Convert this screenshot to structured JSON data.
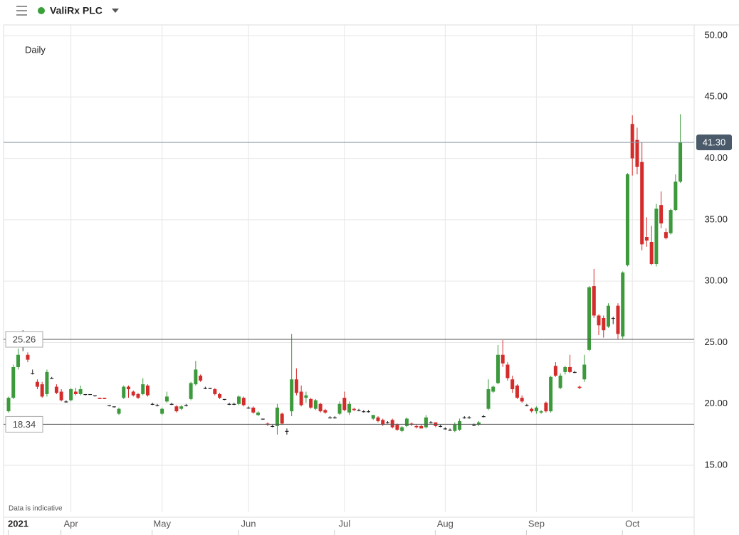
{
  "header": {
    "title": "ValiRx PLC"
  },
  "chart_data": {
    "type": "candlestick",
    "interval_label": "Daily",
    "footnote": "Data is indicative",
    "categories": [
      null,
      null,
      "2021",
      null,
      null,
      null,
      null,
      null,
      null,
      null,
      null,
      null,
      null,
      "Apr",
      null,
      null,
      null,
      null,
      null,
      null,
      null,
      null,
      null,
      null,
      null,
      null,
      null,
      null,
      null,
      null,
      null,
      null,
      "May",
      null,
      null,
      null,
      null,
      null,
      null,
      null,
      null,
      null,
      null,
      null,
      null,
      null,
      null,
      null,
      null,
      null,
      "Jun",
      null,
      null,
      null,
      null,
      null,
      null,
      null,
      null,
      null,
      null,
      null,
      null,
      null,
      null,
      null,
      null,
      null,
      null,
      null,
      "Jul",
      null,
      null,
      null,
      null,
      null,
      null,
      null,
      null,
      null,
      null,
      null,
      null,
      null,
      null,
      null,
      null,
      null,
      null,
      null,
      null,
      "Aug",
      null,
      null,
      null,
      null,
      null,
      null,
      null,
      null,
      null,
      null,
      null,
      null,
      null,
      null,
      null,
      null,
      null,
      null,
      "Sep",
      null,
      null,
      null,
      null,
      null,
      null,
      null,
      null,
      null,
      null,
      null,
      null,
      null,
      null,
      null,
      null,
      null,
      null,
      null,
      "Oct",
      null,
      null,
      null,
      null,
      null,
      null,
      null,
      null,
      null,
      null
    ],
    "open": [
      19.4,
      20.5,
      23.0,
      25.2,
      24.0,
      22.5,
      21.8,
      21.6,
      20.8,
      22.1,
      21.4,
      21.0,
      20.2,
      20.3,
      21.0,
      20.8,
      20.8,
      20.8,
      20.7,
      20.5,
      20.5,
      19.9,
      19.8,
      19.2,
      20.5,
      21.4,
      21.0,
      20.8,
      20.8,
      21.5,
      20.0,
      19.9,
      19.2,
      20.2,
      20.0,
      19.8,
      19.6,
      19.9,
      20.4,
      21.6,
      22.3,
      21.3,
      21.3,
      21.2,
      20.8,
      20.4,
      20.0,
      20.0,
      20.0,
      20.5,
      19.7,
      19.7,
      19.1,
      18.8,
      18.4,
      18.2,
      18.2,
      19.2,
      17.8,
      19.4,
      22.0,
      21.0,
      20.5,
      20.4,
      19.6,
      20.0,
      19.5,
      18.9,
      18.9,
      19.2,
      20.5,
      19.3,
      19.6,
      19.5,
      19.4,
      19.4,
      18.8,
      18.9,
      18.7,
      18.5,
      18.7,
      18.3,
      17.8,
      18.2,
      18.4,
      18.2,
      18.2,
      18.1,
      18.5,
      18.5,
      18.2,
      18.0,
      17.9,
      17.8,
      17.9,
      18.9,
      18.9,
      18.3,
      18.3,
      19.0,
      19.6,
      21.0,
      21.7,
      24.0,
      23.2,
      22.0,
      21.5,
      20.5,
      19.9,
      19.6,
      19.4,
      19.3,
      20.1,
      19.4,
      23.1,
      21.3,
      22.6,
      23.0,
      22.6,
      21.4,
      22.0,
      24.4,
      29.6,
      27.2,
      27.0,
      26.3,
      27.0,
      28.0,
      25.5,
      31.3,
      42.8,
      41.5,
      39.7,
      33.6,
      33.2,
      31.4,
      36.2,
      34.0,
      33.9,
      35.8,
      38.1
    ],
    "high": [
      20.6,
      23.2,
      24.5,
      26.0,
      24.2,
      22.8,
      22.0,
      21.8,
      22.8,
      22.2,
      21.6,
      21.2,
      20.3,
      21.3,
      21.3,
      21.5,
      20.8,
      20.8,
      20.7,
      20.5,
      20.5,
      19.9,
      19.8,
      19.7,
      21.5,
      21.5,
      21.1,
      20.9,
      22.1,
      21.6,
      20.1,
      20.0,
      19.7,
      21.0,
      20.1,
      19.9,
      19.9,
      20.0,
      21.8,
      23.5,
      22.4,
      21.4,
      21.3,
      21.3,
      20.9,
      20.4,
      20.1,
      20.1,
      20.7,
      20.6,
      19.8,
      19.8,
      19.4,
      18.8,
      18.5,
      18.3,
      20.0,
      19.3,
      18.0,
      25.7,
      22.9,
      21.5,
      21.0,
      20.5,
      20.4,
      20.1,
      19.6,
      19.0,
      19.0,
      20.2,
      21.0,
      20.2,
      19.7,
      19.6,
      19.5,
      19.5,
      19.1,
      19.0,
      18.8,
      18.6,
      18.8,
      18.4,
      18.2,
      18.9,
      18.5,
      18.3,
      18.3,
      19.1,
      18.6,
      18.5,
      18.3,
      18.1,
      18.0,
      18.5,
      18.8,
      19.0,
      19.0,
      18.4,
      18.6,
      19.1,
      22.0,
      21.5,
      24.8,
      25.2,
      23.4,
      22.3,
      21.6,
      20.7,
      20.0,
      19.7,
      19.8,
      19.5,
      20.2,
      22.3,
      23.4,
      22.5,
      23.1,
      24.0,
      22.7,
      21.5,
      24.0,
      29.6,
      31.0,
      27.3,
      27.2,
      28.2,
      27.1,
      28.2,
      30.8,
      38.8,
      43.5,
      42.5,
      41.3,
      35.2,
      34.5,
      36.3,
      37.3,
      34.3,
      35.9,
      38.7,
      43.6
    ],
    "low": [
      19.3,
      20.4,
      22.8,
      24.3,
      23.4,
      22.4,
      21.2,
      20.5,
      20.6,
      22.1,
      20.8,
      20.2,
      20.1,
      20.2,
      20.7,
      20.7,
      20.7,
      20.8,
      20.6,
      20.4,
      20.4,
      19.8,
      19.7,
      19.1,
      20.4,
      20.5,
      20.6,
      20.4,
      20.7,
      20.6,
      19.9,
      19.8,
      19.1,
      20.1,
      19.9,
      19.3,
      19.5,
      19.8,
      20.3,
      21.5,
      21.8,
      21.2,
      21.2,
      20.7,
      20.4,
      20.3,
      19.9,
      19.9,
      19.9,
      19.8,
      19.6,
      19.2,
      19.0,
      18.7,
      18.2,
      18.1,
      17.5,
      18.3,
      17.5,
      19.0,
      20.7,
      19.8,
      20.1,
      19.6,
      19.5,
      19.3,
      19.2,
      18.8,
      18.8,
      19.1,
      19.4,
      19.1,
      19.4,
      19.4,
      19.3,
      19.3,
      18.7,
      18.5,
      18.2,
      18.4,
      18.0,
      17.8,
      17.7,
      18.1,
      18.2,
      18.0,
      18.0,
      18.0,
      18.4,
      18.1,
      18.1,
      17.9,
      17.8,
      17.7,
      17.8,
      18.8,
      18.8,
      18.2,
      18.2,
      18.9,
      19.5,
      20.9,
      21.6,
      23.0,
      21.9,
      20.9,
      20.4,
      20.1,
      19.8,
      19.3,
      19.2,
      19.2,
      19.3,
      19.3,
      22.2,
      21.2,
      22.4,
      22.5,
      22.5,
      21.2,
      21.8,
      24.3,
      27.0,
      25.6,
      25.4,
      26.2,
      26.5,
      25.3,
      25.3,
      31.2,
      38.6,
      38.7,
      32.5,
      32.8,
      31.3,
      31.2,
      34.3,
      33.4,
      33.8,
      35.7,
      38.0
    ],
    "close": [
      20.5,
      23.0,
      24.0,
      25.2,
      23.6,
      22.5,
      21.4,
      20.6,
      22.6,
      22.1,
      20.9,
      20.3,
      20.2,
      21.2,
      20.8,
      21.2,
      20.8,
      20.8,
      20.7,
      20.4,
      20.4,
      19.9,
      19.8,
      19.6,
      21.4,
      21.2,
      20.7,
      20.5,
      21.6,
      20.7,
      20.0,
      19.9,
      19.6,
      20.6,
      20.0,
      19.4,
      19.8,
      19.9,
      21.7,
      22.8,
      21.9,
      21.3,
      21.3,
      20.8,
      20.5,
      20.4,
      20.0,
      20.0,
      20.6,
      19.9,
      19.7,
      19.3,
      19.3,
      18.8,
      18.3,
      18.2,
      19.7,
      18.4,
      17.8,
      22.0,
      20.9,
      19.9,
      20.7,
      19.7,
      20.3,
      19.4,
      19.3,
      18.9,
      18.9,
      20.0,
      19.5,
      20.0,
      19.5,
      19.5,
      19.4,
      19.4,
      19.1,
      18.6,
      18.3,
      18.5,
      18.1,
      17.9,
      18.1,
      18.8,
      18.3,
      18.1,
      18.0,
      18.9,
      18.5,
      18.2,
      18.2,
      18.0,
      17.9,
      18.3,
      18.6,
      18.9,
      18.9,
      18.3,
      18.5,
      19.0,
      21.2,
      21.4,
      24.0,
      23.3,
      22.1,
      21.2,
      20.5,
      20.2,
      19.9,
      19.4,
      19.7,
      19.4,
      19.4,
      22.2,
      22.3,
      22.3,
      23.0,
      22.6,
      22.6,
      21.3,
      23.2,
      29.5,
      27.2,
      26.4,
      26.0,
      28.0,
      27.0,
      25.7,
      30.7,
      38.7,
      40.0,
      39.3,
      33.0,
      33.3,
      31.4,
      35.9,
      34.7,
      33.5,
      35.8,
      38.1,
      41.3
    ],
    "up_color": "#3c9a3c",
    "down_color": "#d42b2b",
    "flat_color": "#222222",
    "ylim": [
      9.73,
      50.87
    ],
    "yticks": [
      {
        "value": 15,
        "label": "15.00"
      },
      {
        "value": 20,
        "label": "20.00"
      },
      {
        "value": 25,
        "label": "25.00"
      },
      {
        "value": 30,
        "label": "30.00"
      },
      {
        "value": 35,
        "label": "35.00"
      },
      {
        "value": 40,
        "label": "40.00"
      },
      {
        "value": 45,
        "label": "45.00"
      },
      {
        "value": 50,
        "label": "50.00"
      }
    ],
    "grid": true,
    "last_price": {
      "value": 41.3,
      "label": "41.30"
    },
    "high_line": {
      "value": 25.26,
      "label": "25.26"
    },
    "low_line": {
      "value": 18.34,
      "label": "18.34"
    }
  }
}
